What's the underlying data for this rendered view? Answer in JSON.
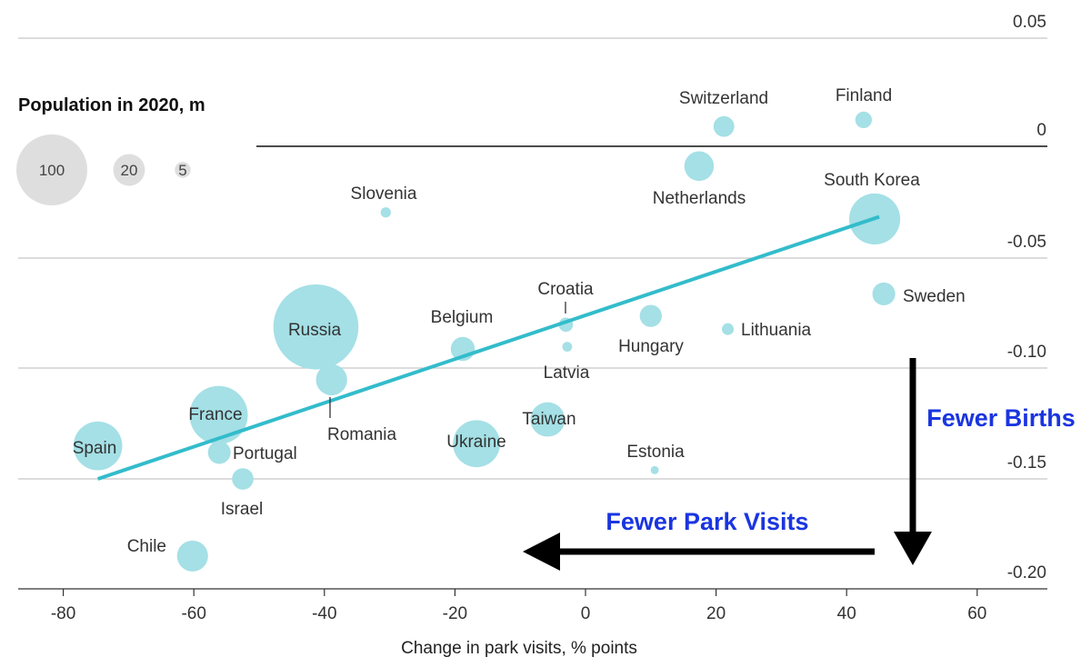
{
  "chart_data": {
    "type": "scatter",
    "title": "",
    "xlabel": "Change in park visits, % points",
    "ylabel": "",
    "xlim": [
      -86,
      71
    ],
    "ylim": [
      -0.2,
      0.05
    ],
    "xticks": [
      "-80",
      "-60",
      "-40",
      "-20",
      "0",
      "20",
      "40",
      "60"
    ],
    "yticks": [
      "0.05",
      "0",
      "-0.05",
      "-0.10",
      "-0.15",
      "-0.20"
    ],
    "grid": "horizontal",
    "legend": {
      "title": "Population in 2020, m",
      "placement": "top-left",
      "sizes": [
        {
          "label": "100",
          "value": 100
        },
        {
          "label": "20",
          "value": 20
        },
        {
          "label": "5",
          "value": 5
        }
      ]
    },
    "points": [
      {
        "name": "Switzerland",
        "x": 21.2,
        "y": 0.009,
        "pop": 8.6
      },
      {
        "name": "Finland",
        "x": 42.6,
        "y": 0.012,
        "pop": 5.5
      },
      {
        "name": "Netherlands",
        "x": 17.4,
        "y": -0.009,
        "pop": 17.4
      },
      {
        "name": "Slovenia",
        "x": -30.6,
        "y": -0.03,
        "pop": 2.1
      },
      {
        "name": "South Korea",
        "x": 44.3,
        "y": -0.033,
        "pop": 51.8
      },
      {
        "name": "Sweden",
        "x": 45.7,
        "y": -0.067,
        "pop": 10.4
      },
      {
        "name": "Croatia",
        "x": -3.0,
        "y": -0.081,
        "pop": 4.0
      },
      {
        "name": "Hungary",
        "x": 10.0,
        "y": -0.077,
        "pop": 9.7
      },
      {
        "name": "Lithuania",
        "x": 21.8,
        "y": -0.083,
        "pop": 2.8
      },
      {
        "name": "Latvia",
        "x": -2.8,
        "y": -0.091,
        "pop": 1.9
      },
      {
        "name": "Belgium",
        "x": -18.8,
        "y": -0.092,
        "pop": 11.5
      },
      {
        "name": "Russia",
        "x": -41.3,
        "y": -0.082,
        "pop": 144
      },
      {
        "name": "Romania",
        "x": -38.9,
        "y": -0.106,
        "pop": 19.3
      },
      {
        "name": "France",
        "x": -56.2,
        "y": -0.122,
        "pop": 67.4
      },
      {
        "name": "Spain",
        "x": -74.7,
        "y": -0.136,
        "pop": 47.4
      },
      {
        "name": "Portugal",
        "x": -56.1,
        "y": -0.139,
        "pop": 10.3
      },
      {
        "name": "Israel",
        "x": -52.5,
        "y": -0.151,
        "pop": 9.2
      },
      {
        "name": "Taiwan",
        "x": -5.8,
        "y": -0.124,
        "pop": 23.6
      },
      {
        "name": "Ukraine",
        "x": -16.7,
        "y": -0.135,
        "pop": 44.1
      },
      {
        "name": "Estonia",
        "x": 10.6,
        "y": -0.147,
        "pop": 1.3
      },
      {
        "name": "Chile",
        "x": -60.2,
        "y": -0.186,
        "pop": 19.1
      }
    ],
    "trendline": {
      "x1": -74.7,
      "y1": -0.151,
      "x2": 45.0,
      "y2": -0.032
    },
    "annotations": [
      {
        "text": "Fewer Births",
        "color": "#1a35e0"
      },
      {
        "text": "Fewer Park Visits",
        "color": "#1a35e0"
      }
    ]
  },
  "colors": {
    "bubble": "#a4e0e6",
    "trend": "#33bccb",
    "legend_bubble": "#dedede",
    "grid": "#c8c8c8",
    "zero_line": "#111111",
    "arrow": "#000000"
  }
}
